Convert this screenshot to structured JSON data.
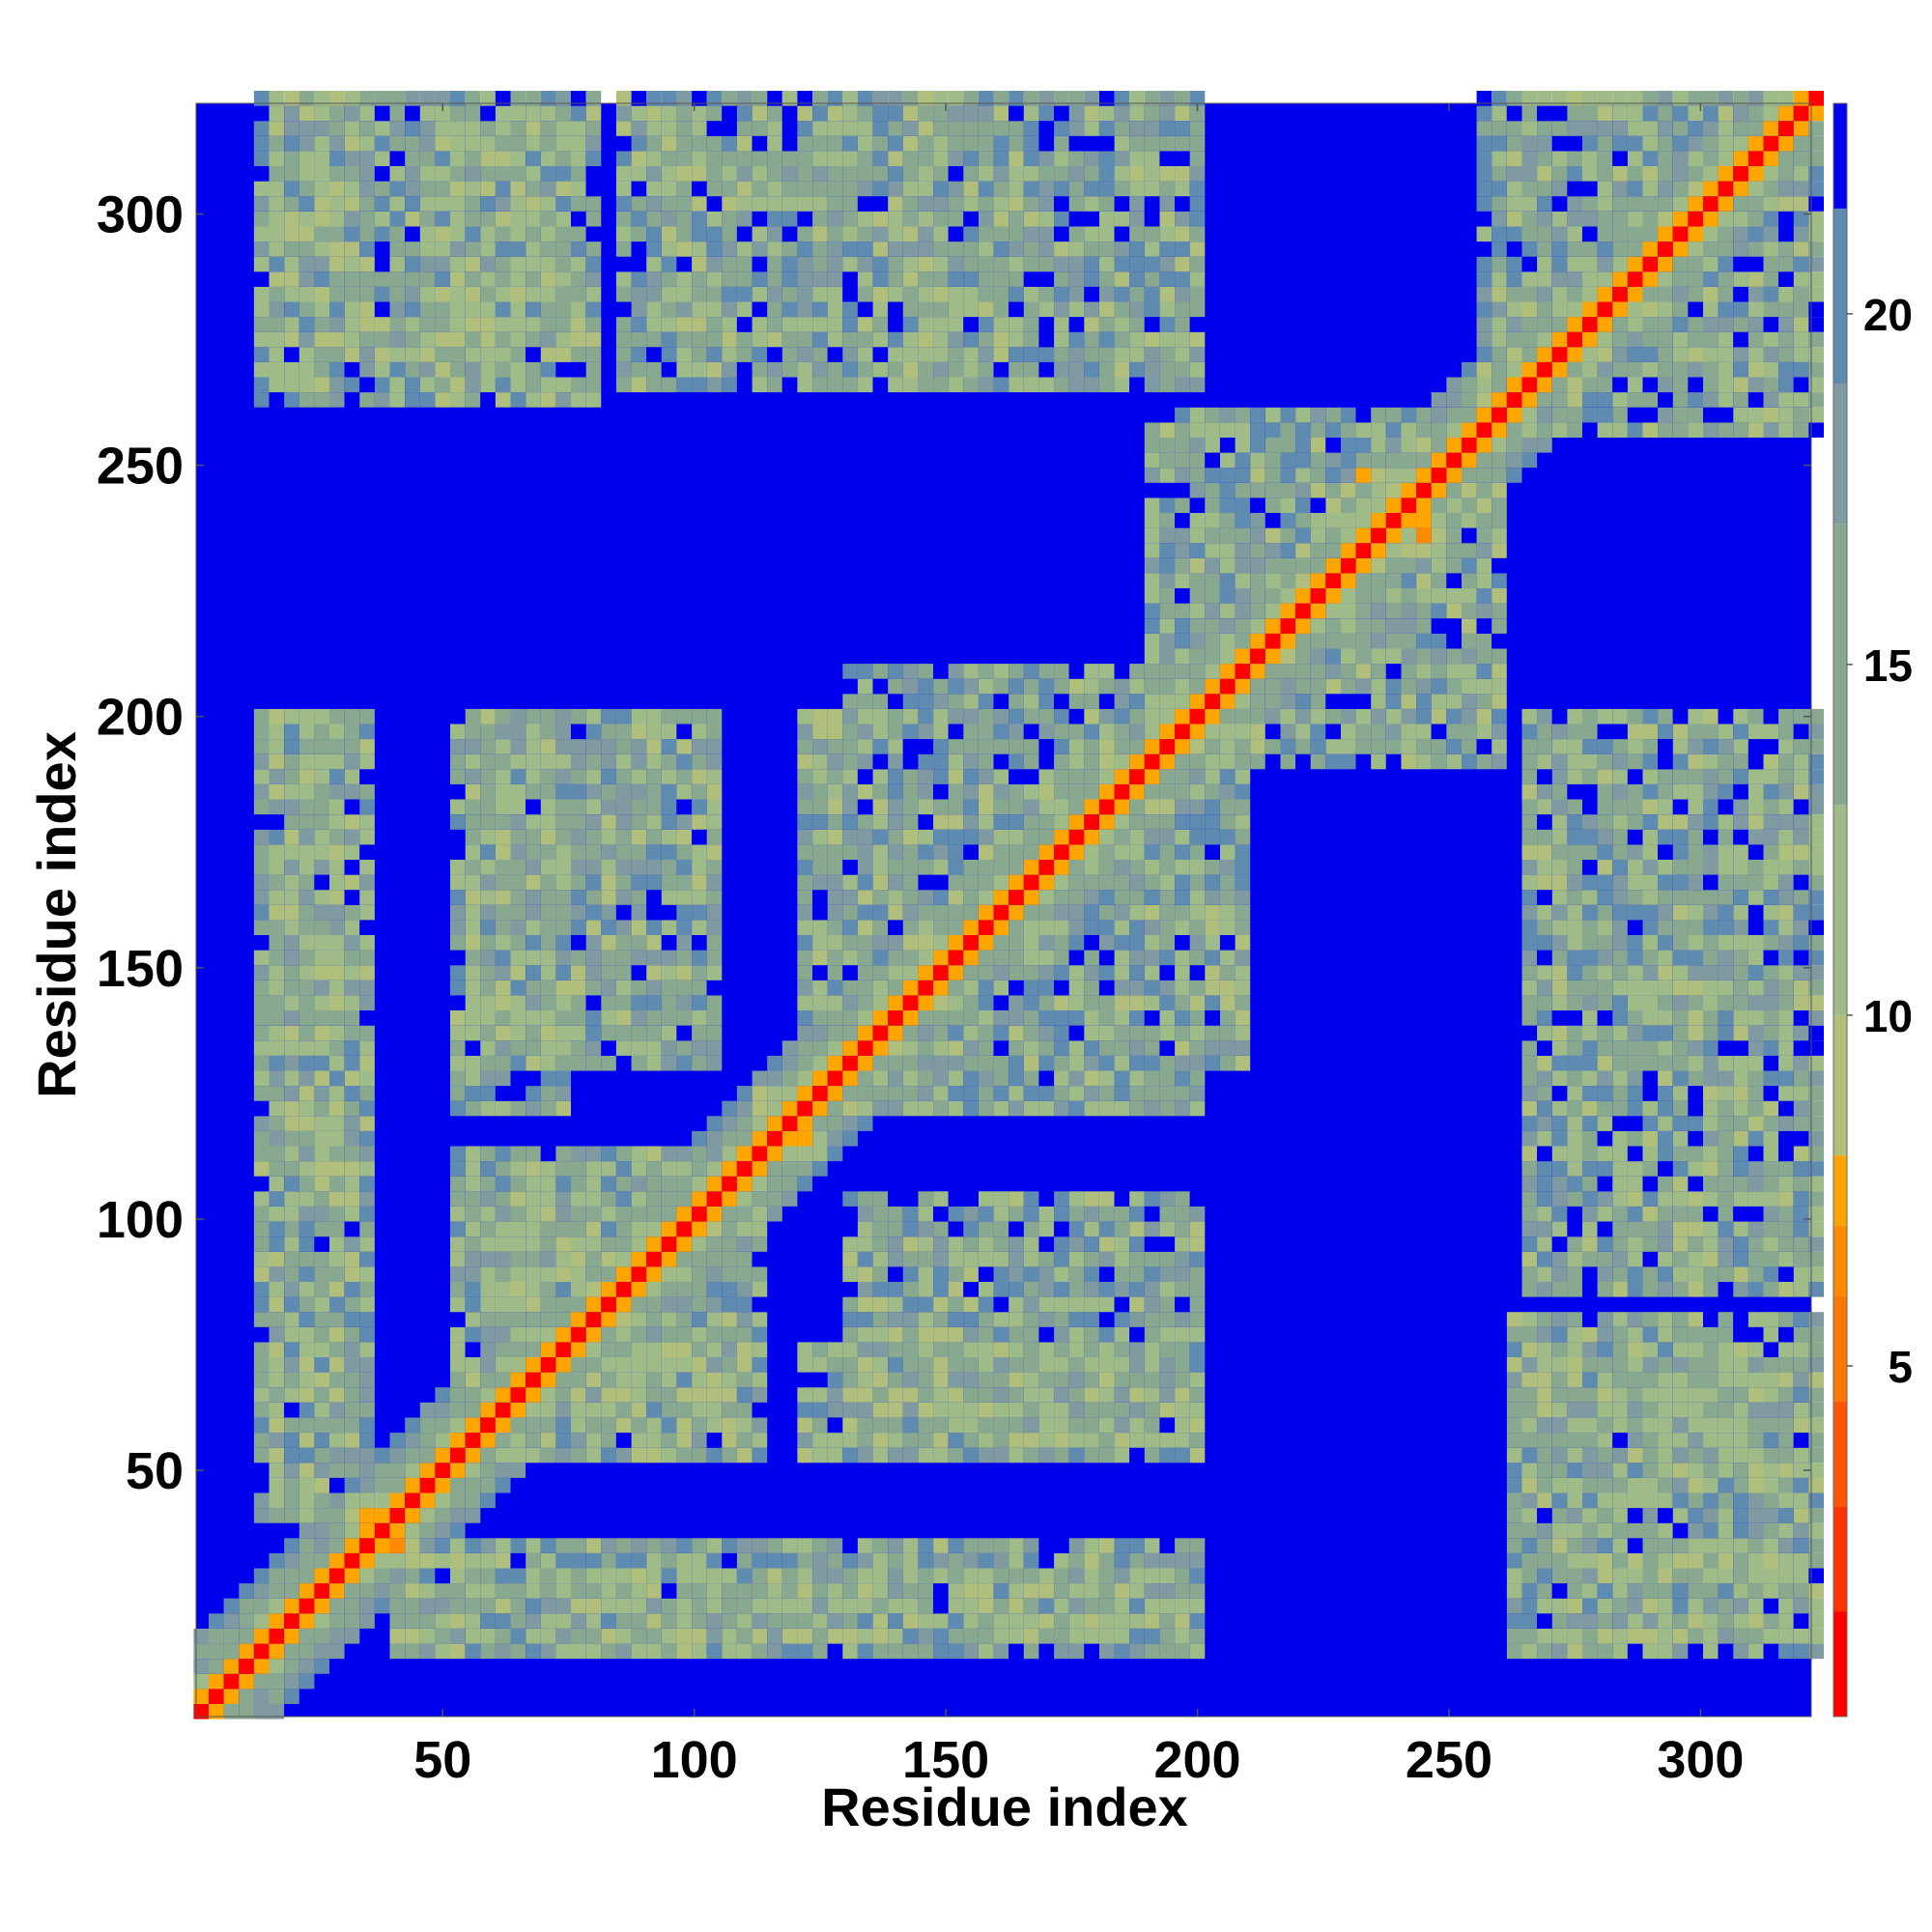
{
  "chart_data": {
    "type": "heatmap",
    "title": "",
    "xlabel": "Residue index",
    "ylabel": "Residue index",
    "n_residues": 322,
    "xlim": [
      1,
      322
    ],
    "ylim": [
      1,
      322
    ],
    "x_ticks": [
      50,
      100,
      150,
      200,
      250,
      300
    ],
    "y_ticks": [
      50,
      100,
      150,
      200,
      250,
      300
    ],
    "colorbar": {
      "ticks": [
        5,
        10,
        15,
        20
      ],
      "range": [
        0,
        23
      ],
      "levels": [
        {
          "upper": 1.5,
          "color": "#ff0000"
        },
        {
          "upper": 3,
          "color": "#ff3300"
        },
        {
          "upper": 4.5,
          "color": "#ff5500"
        },
        {
          "upper": 6,
          "color": "#ff7700"
        },
        {
          "upper": 7,
          "color": "#ff8c00"
        },
        {
          "upper": 8,
          "color": "#ffa500"
        },
        {
          "upper": 10,
          "color": "#b0c07c"
        },
        {
          "upper": 13,
          "color": "#9fbc88"
        },
        {
          "upper": 17,
          "color": "#88a890"
        },
        {
          "upper": 19,
          "color": "#7f9aa0"
        },
        {
          "upper": 21.5,
          "color": "#5f8bb0"
        },
        {
          "upper": 23,
          "color": "#0000ee"
        }
      ]
    },
    "background_color": "#0000ee",
    "diagonal_color": "#ff0000",
    "contact_regions": [
      {
        "x": [
          1,
          322
        ],
        "y": [
          1,
          322
        ],
        "kind": "diagonal"
      },
      {
        "x": [
          30,
          45
        ],
        "y": [
          30,
          45
        ],
        "kind": "crossing"
      },
      {
        "x": [
          110,
          125
        ],
        "y": [
          110,
          125
        ],
        "kind": "crossing"
      },
      {
        "x": [
          232,
          248
        ],
        "y": [
          232,
          248
        ],
        "kind": "crossing"
      },
      {
        "x": [
          50,
          80
        ],
        "y": [
          50,
          110
        ],
        "kind": "block"
      },
      {
        "x": [
          80,
          112
        ],
        "y": [
          50,
          110
        ],
        "kind": "block"
      },
      {
        "x": [
          130,
          200
        ],
        "y": [
          120,
          210
        ],
        "kind": "block"
      },
      {
        "x": [
          190,
          260
        ],
        "y": [
          190,
          250
        ],
        "kind": "block"
      },
      {
        "x": [
          260,
          322
        ],
        "y": [
          255,
          322
        ],
        "kind": "block"
      },
      {
        "x": [
          40,
          200
        ],
        "y": [
          15,
          35
        ],
        "kind": "band"
      },
      {
        "x": [
          12,
          28
        ],
        "y": [
          40,
          200
        ],
        "kind": "band"
      },
      {
        "x": [
          130,
          200
        ],
        "y": [
          55,
          105
        ],
        "kind": "band"
      },
      {
        "x": [
          265,
          322
        ],
        "y": [
          45,
          75
        ],
        "kind": "band"
      },
      {
        "x": [
          270,
          322
        ],
        "y": [
          15,
          35
        ],
        "kind": "band"
      },
      {
        "x": [
          265,
          322
        ],
        "y": [
          140,
          200
        ],
        "kind": "band"
      },
      {
        "x": [
          12,
          80
        ],
        "y": [
          260,
          322
        ],
        "kind": "band"
      },
      {
        "x": [
          85,
          150
        ],
        "y": [
          265,
          322
        ],
        "kind": "band"
      },
      {
        "x": [
          50,
          75
        ],
        "y": [
          120,
          200
        ],
        "kind": "band"
      },
      {
        "x": [
          300,
          312
        ],
        "y": [
          105,
          130
        ],
        "kind": "band"
      }
    ]
  }
}
